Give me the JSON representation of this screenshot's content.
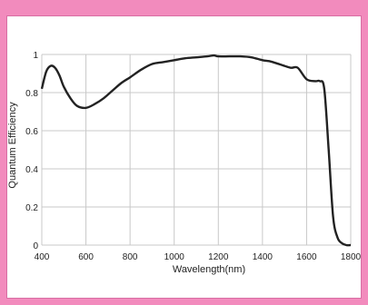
{
  "chart_data": {
    "type": "line",
    "title": "",
    "xlabel": "Wavelength(nm)",
    "ylabel": "Quantum Efficiency",
    "xlim": [
      400,
      1800
    ],
    "ylim": [
      0,
      1
    ],
    "x_ticks": [
      "400",
      "600",
      "800",
      "1000",
      "1200",
      "1400",
      "1600",
      "1800"
    ],
    "y_ticks": [
      "0",
      "0.2",
      "0.4",
      "0.6",
      "0.8",
      "1"
    ],
    "grid": true,
    "legend": "none",
    "colors": {
      "line": "#222222",
      "grid": "#c8c8c8",
      "frame": "#f28bbd"
    },
    "series": [
      {
        "x": [
          400,
          420,
          440,
          460,
          480,
          500,
          530,
          560,
          600,
          640,
          680,
          720,
          760,
          800,
          850,
          900,
          950,
          1000,
          1050,
          1100,
          1150,
          1180,
          1200,
          1250,
          1300,
          1350,
          1400,
          1430,
          1460,
          1500,
          1530,
          1560,
          1600,
          1640,
          1660,
          1680,
          1700,
          1720,
          1740,
          1760,
          1780,
          1800
        ],
        "y": [
          0.82,
          0.91,
          0.94,
          0.93,
          0.89,
          0.83,
          0.77,
          0.73,
          0.72,
          0.74,
          0.77,
          0.81,
          0.85,
          0.88,
          0.92,
          0.95,
          0.96,
          0.97,
          0.98,
          0.985,
          0.99,
          0.995,
          0.99,
          0.99,
          0.99,
          0.985,
          0.97,
          0.965,
          0.955,
          0.94,
          0.93,
          0.93,
          0.87,
          0.86,
          0.86,
          0.82,
          0.5,
          0.15,
          0.04,
          0.01,
          0.0,
          0.0
        ]
      }
    ]
  }
}
